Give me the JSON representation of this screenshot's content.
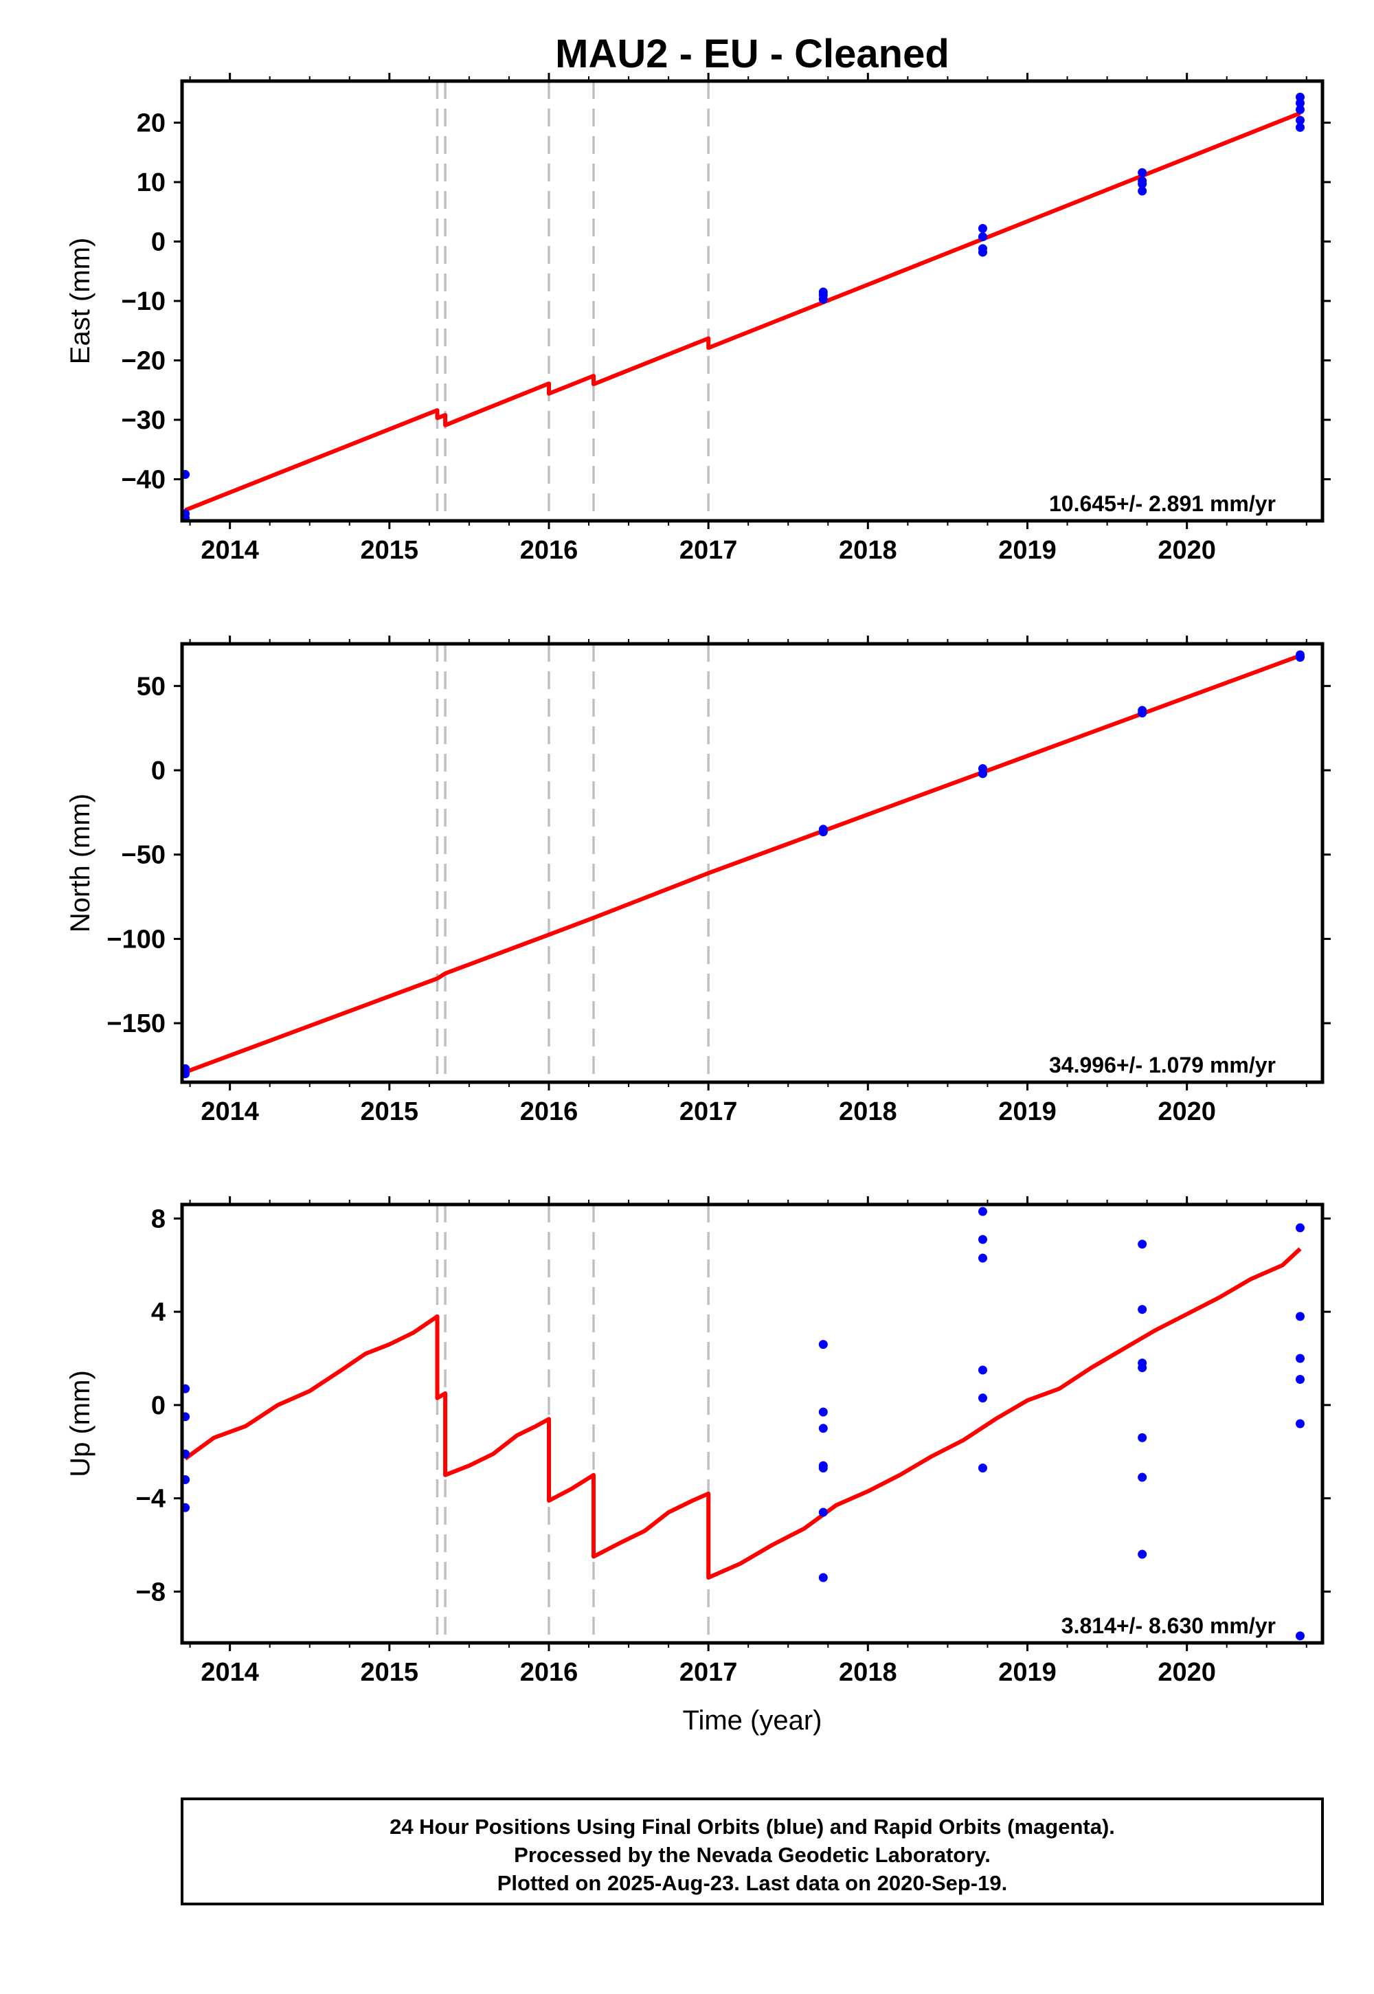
{
  "title": "MAU2  - EU - Cleaned",
  "xlabel": "Time (year)",
  "x_tick_labels": [
    "2014",
    "2015",
    "2016",
    "2017",
    "2018",
    "2019",
    "2020"
  ],
  "footer": {
    "line1": "24 Hour Positions Using Final Orbits (blue) and Rapid Orbits (magenta).",
    "line2": "Processed by the Nevada Geodetic Laboratory.",
    "line3": "Plotted on 2025-Aug-23. Last data on 2020-Sep-19."
  },
  "colors": {
    "points": "#0000ff",
    "model": "#ff0000",
    "steps": "#c0c0c0"
  },
  "chart_data": [
    {
      "type": "scatter",
      "ylabel": "East (mm)",
      "xlim": [
        2013.7,
        2020.85
      ],
      "ylim": [
        -47,
        27
      ],
      "y_ticks": [
        -40,
        -30,
        -20,
        -10,
        0,
        10,
        20
      ],
      "rate_label": "10.645+/- 2.891 mm/yr",
      "step_epochs": [
        2015.3,
        2015.35,
        2016.0,
        2016.28,
        2017.0
      ],
      "points": [
        [
          2013.72,
          -39.2
        ],
        [
          2013.72,
          -45.8
        ],
        [
          2013.72,
          -46.5
        ],
        [
          2017.72,
          -8.5
        ],
        [
          2017.72,
          -9.0
        ],
        [
          2017.72,
          -9.7
        ],
        [
          2018.72,
          2.2
        ],
        [
          2018.72,
          0.8
        ],
        [
          2018.72,
          -1.2
        ],
        [
          2018.72,
          -1.8
        ],
        [
          2019.72,
          11.6
        ],
        [
          2019.72,
          10.2
        ],
        [
          2019.72,
          9.7
        ],
        [
          2019.72,
          8.5
        ],
        [
          2020.71,
          24.3
        ],
        [
          2020.71,
          23.3
        ],
        [
          2020.71,
          22.2
        ],
        [
          2020.71,
          20.4
        ],
        [
          2020.71,
          19.2
        ]
      ],
      "model": [
        [
          2013.72,
          -45.2
        ],
        [
          2015.3,
          -28.4
        ],
        [
          2015.3,
          -29.7
        ],
        [
          2015.35,
          -29.2
        ],
        [
          2015.35,
          -30.9
        ],
        [
          2016.0,
          -23.9
        ],
        [
          2016.0,
          -25.6
        ],
        [
          2016.28,
          -22.6
        ],
        [
          2016.28,
          -24.0
        ],
        [
          2017.0,
          -16.3
        ],
        [
          2017.0,
          -17.9
        ],
        [
          2020.71,
          21.6
        ]
      ]
    },
    {
      "type": "scatter",
      "ylabel": "North (mm)",
      "xlim": [
        2013.7,
        2020.85
      ],
      "ylim": [
        -185,
        75
      ],
      "y_ticks": [
        -150,
        -100,
        -50,
        0,
        50
      ],
      "rate_label": "34.996+/- 1.079 mm/yr",
      "step_epochs": [
        2015.3,
        2015.35,
        2016.0,
        2016.28,
        2017.0
      ],
      "points": [
        [
          2013.72,
          -177
        ],
        [
          2013.72,
          -180
        ],
        [
          2017.72,
          -35
        ],
        [
          2017.72,
          -36.5
        ],
        [
          2018.72,
          1
        ],
        [
          2018.72,
          -2
        ],
        [
          2019.72,
          35.5
        ],
        [
          2019.72,
          34
        ],
        [
          2020.71,
          68.5
        ],
        [
          2020.71,
          67
        ]
      ],
      "model": [
        [
          2013.72,
          -179
        ],
        [
          2015.3,
          -123.5
        ],
        [
          2015.35,
          -120.5
        ],
        [
          2016.0,
          -97.5
        ],
        [
          2016.28,
          -87.5
        ],
        [
          2017.0,
          -61
        ],
        [
          2020.71,
          68
        ]
      ]
    },
    {
      "type": "scatter",
      "ylabel": "Up (mm)",
      "xlim": [
        2013.7,
        2020.85
      ],
      "ylim": [
        -10.2,
        8.6
      ],
      "y_ticks": [
        -8,
        -4,
        0,
        4,
        8
      ],
      "rate_label": "3.814+/- 8.630 mm/yr",
      "step_epochs": [
        2015.3,
        2015.35,
        2016.0,
        2016.28,
        2017.0
      ],
      "points": [
        [
          2013.72,
          0.7
        ],
        [
          2013.72,
          -0.5
        ],
        [
          2013.72,
          -2.1
        ],
        [
          2013.72,
          -3.2
        ],
        [
          2013.72,
          -4.4
        ],
        [
          2017.72,
          2.6
        ],
        [
          2017.72,
          -0.3
        ],
        [
          2017.72,
          -1.0
        ],
        [
          2017.72,
          -2.6
        ],
        [
          2017.72,
          -2.7
        ],
        [
          2017.72,
          -4.6
        ],
        [
          2017.72,
          -7.4
        ],
        [
          2018.72,
          8.3
        ],
        [
          2018.72,
          7.1
        ],
        [
          2018.72,
          6.3
        ],
        [
          2018.72,
          1.5
        ],
        [
          2018.72,
          0.3
        ],
        [
          2018.72,
          -2.7
        ],
        [
          2019.72,
          6.9
        ],
        [
          2019.72,
          4.1
        ],
        [
          2019.72,
          1.8
        ],
        [
          2019.72,
          1.6
        ],
        [
          2019.72,
          -1.4
        ],
        [
          2019.72,
          -3.1
        ],
        [
          2019.72,
          -6.4
        ],
        [
          2020.71,
          7.6
        ],
        [
          2020.71,
          3.8
        ],
        [
          2020.71,
          2.0
        ],
        [
          2020.71,
          1.1
        ],
        [
          2020.71,
          -0.8
        ],
        [
          2020.71,
          -9.9
        ]
      ],
      "model": [
        [
          2013.72,
          -2.3
        ],
        [
          2013.9,
          -1.4
        ],
        [
          2014.1,
          -0.9
        ],
        [
          2014.3,
          0.0
        ],
        [
          2014.5,
          0.6
        ],
        [
          2014.7,
          1.5
        ],
        [
          2014.85,
          2.2
        ],
        [
          2015.0,
          2.6
        ],
        [
          2015.15,
          3.1
        ],
        [
          2015.3,
          3.8
        ],
        [
          2015.3,
          0.3
        ],
        [
          2015.35,
          0.5
        ],
        [
          2015.35,
          -3.0
        ],
        [
          2015.5,
          -2.6
        ],
        [
          2015.65,
          -2.1
        ],
        [
          2015.8,
          -1.3
        ],
        [
          2015.92,
          -0.9
        ],
        [
          2016.0,
          -0.6
        ],
        [
          2016.0,
          -4.1
        ],
        [
          2016.14,
          -3.6
        ],
        [
          2016.28,
          -3.0
        ],
        [
          2016.28,
          -6.5
        ],
        [
          2016.45,
          -5.9
        ],
        [
          2016.6,
          -5.4
        ],
        [
          2016.75,
          -4.6
        ],
        [
          2016.9,
          -4.1
        ],
        [
          2017.0,
          -3.8
        ],
        [
          2017.0,
          -7.4
        ],
        [
          2017.2,
          -6.8
        ],
        [
          2017.4,
          -6.0
        ],
        [
          2017.6,
          -5.3
        ],
        [
          2017.8,
          -4.3
        ],
        [
          2018.0,
          -3.7
        ],
        [
          2018.2,
          -3.0
        ],
        [
          2018.4,
          -2.2
        ],
        [
          2018.6,
          -1.5
        ],
        [
          2018.8,
          -0.6
        ],
        [
          2019.0,
          0.2
        ],
        [
          2019.2,
          0.7
        ],
        [
          2019.4,
          1.6
        ],
        [
          2019.6,
          2.4
        ],
        [
          2019.8,
          3.2
        ],
        [
          2020.0,
          3.9
        ],
        [
          2020.2,
          4.6
        ],
        [
          2020.4,
          5.4
        ],
        [
          2020.6,
          6.0
        ],
        [
          2020.71,
          6.7
        ]
      ]
    }
  ]
}
